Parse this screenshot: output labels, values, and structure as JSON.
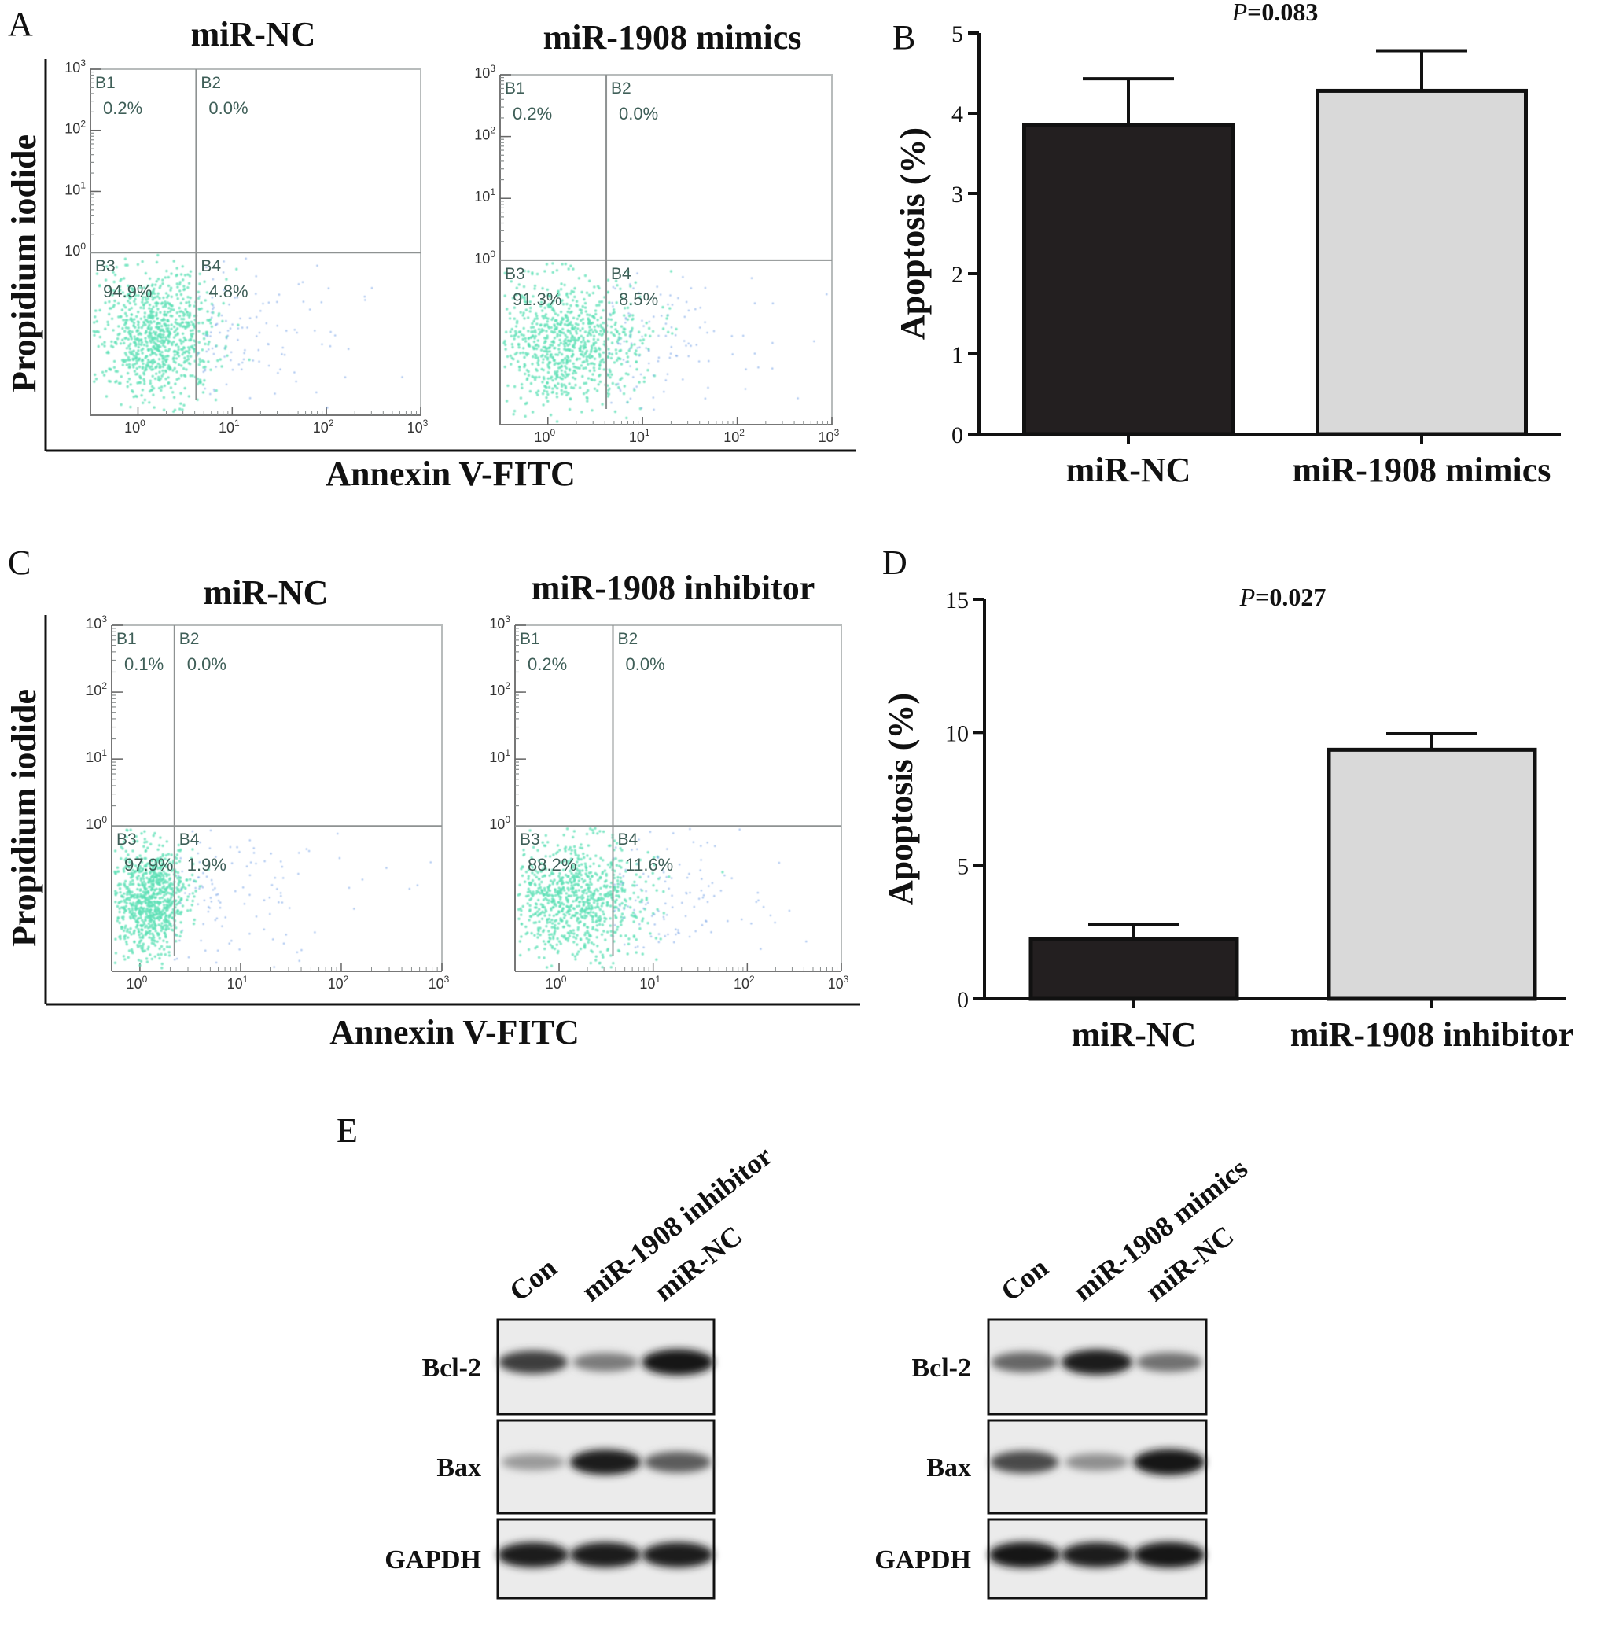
{
  "panel_letters": {
    "a": "A",
    "b": "B",
    "c": "C",
    "d": "D",
    "e": "E"
  },
  "flow": {
    "x_label": "Annexin V-FITC",
    "y_label": "Propidium iodide",
    "axis_ticks": {
      "base": "10",
      "exponents": [
        "0",
        "1",
        "2",
        "3"
      ]
    },
    "quadrant_names": [
      "B1",
      "B2",
      "B3",
      "B4"
    ],
    "scatter_color": "#5ee0b6",
    "rows": [
      {
        "plots": [
          {
            "title": "miR-NC",
            "quadrants": [
              "0.2%",
              "0.0%",
              "94.9%",
              "4.8%"
            ]
          },
          {
            "title": "miR-1908 mimics",
            "quadrants": [
              "0.2%",
              "0.0%",
              "91.3%",
              "8.5%"
            ]
          }
        ]
      },
      {
        "plots": [
          {
            "title": "miR-NC",
            "quadrants": [
              "0.1%",
              "0.0%",
              "97.9%",
              "1.9%"
            ]
          },
          {
            "title": "miR-1908 inhibitor",
            "quadrants": [
              "0.2%",
              "0.0%",
              "88.2%",
              "11.6%"
            ]
          }
        ]
      }
    ]
  },
  "chart_data": [
    {
      "type": "bar",
      "panel": "B",
      "categories": [
        "miR-NC",
        "miR-1908 mimics"
      ],
      "values": [
        3.85,
        4.28
      ],
      "errors": [
        0.58,
        0.5
      ],
      "colors": [
        "#231f20",
        "#d9d9d9"
      ],
      "ylabel": "Apoptosis (%)",
      "ylim": [
        0,
        5
      ],
      "yticks": [
        0,
        1,
        2,
        3,
        4,
        5
      ],
      "annotation": {
        "p_prefix": "P",
        "p_value": "=0.083"
      }
    },
    {
      "type": "bar",
      "panel": "D",
      "categories": [
        "miR-NC",
        "miR-1908 inhibitor"
      ],
      "values": [
        2.25,
        9.35
      ],
      "errors": [
        0.55,
        0.6
      ],
      "colors": [
        "#231f20",
        "#d9d9d9"
      ],
      "ylabel": "Apoptosis (%)",
      "ylim": [
        0,
        15
      ],
      "yticks": [
        0,
        5,
        10,
        15
      ],
      "annotation": {
        "p_prefix": "P",
        "p_value": "=0.027"
      }
    }
  ],
  "western": {
    "blots": [
      {
        "lanes": [
          "Con",
          "miR-1908 inhibitor",
          "miR-NC"
        ],
        "proteins": [
          {
            "name": "Bcl-2",
            "intensities": [
              0.75,
              0.45,
              0.95
            ]
          },
          {
            "name": "Bax",
            "intensities": [
              0.3,
              0.9,
              0.6
            ]
          },
          {
            "name": "GAPDH",
            "intensities": [
              0.9,
              0.9,
              0.9
            ]
          }
        ]
      },
      {
        "lanes": [
          "Con",
          "miR-1908 mimics",
          "miR-NC"
        ],
        "proteins": [
          {
            "name": "Bcl-2",
            "intensities": [
              0.55,
              0.9,
              0.5
            ]
          },
          {
            "name": "Bax",
            "intensities": [
              0.7,
              0.35,
              0.95
            ]
          },
          {
            "name": "GAPDH",
            "intensities": [
              0.95,
              0.9,
              0.95
            ]
          }
        ]
      }
    ]
  }
}
